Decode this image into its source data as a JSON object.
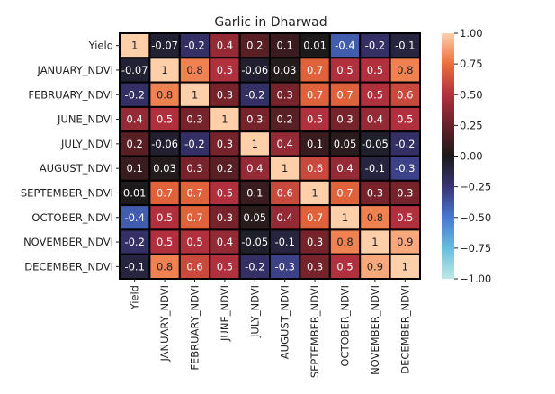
{
  "chart_data": {
    "type": "heatmap",
    "title": "Garlic in Dharwad",
    "rows": [
      "Yield",
      "JANUARY_NDVI",
      "FEBRUARY_NDVI",
      "JUNE_NDVI",
      "JULY_NDVI",
      "AUGUST_NDVI",
      "SEPTEMBER_NDVI",
      "OCTOBER_NDVI",
      "NOVEMBER_NDVI",
      "DECEMBER_NDVI"
    ],
    "columns": [
      "Yield",
      "JANUARY_NDVI",
      "FEBRUARY_NDVI",
      "JUNE_NDVI",
      "JULY_NDVI",
      "AUGUST_NDVI",
      "SEPTEMBER_NDVI",
      "OCTOBER_NDVI",
      "NOVEMBER_NDVI",
      "DECEMBER_NDVI"
    ],
    "values": [
      [
        1,
        -0.07,
        -0.2,
        0.4,
        0.2,
        0.1,
        0.01,
        -0.4,
        -0.2,
        -0.1
      ],
      [
        -0.07,
        1,
        0.8,
        0.5,
        -0.06,
        0.03,
        0.7,
        0.5,
        0.5,
        0.8
      ],
      [
        -0.2,
        0.8,
        1,
        0.3,
        -0.2,
        0.3,
        0.7,
        0.7,
        0.5,
        0.6
      ],
      [
        0.4,
        0.5,
        0.3,
        1,
        0.3,
        0.2,
        0.5,
        0.3,
        0.4,
        0.5
      ],
      [
        0.2,
        -0.06,
        -0.2,
        0.3,
        1,
        0.4,
        0.1,
        0.05,
        -0.05,
        -0.2
      ],
      [
        0.1,
        0.03,
        0.3,
        0.2,
        0.4,
        1,
        0.6,
        0.4,
        -0.1,
        -0.3
      ],
      [
        0.01,
        0.7,
        0.7,
        0.5,
        0.1,
        0.6,
        1,
        0.7,
        0.3,
        0.3
      ],
      [
        -0.4,
        0.5,
        0.7,
        0.3,
        0.05,
        0.4,
        0.7,
        1,
        0.8,
        0.5
      ],
      [
        -0.2,
        0.5,
        0.5,
        0.4,
        -0.05,
        -0.1,
        0.3,
        0.8,
        1,
        0.9
      ],
      [
        -0.1,
        0.8,
        0.6,
        0.5,
        -0.2,
        -0.3,
        0.3,
        0.5,
        0.9,
        1
      ]
    ],
    "colorbar": {
      "range": [
        -1.0,
        1.0
      ],
      "ticks": [
        "1.00",
        "0.75",
        "0.50",
        "0.25",
        "0.00",
        "−0.25",
        "−0.50",
        "−0.75",
        "−1.00"
      ],
      "colormap": "icefire"
    },
    "cell_border_color": "#000000"
  }
}
